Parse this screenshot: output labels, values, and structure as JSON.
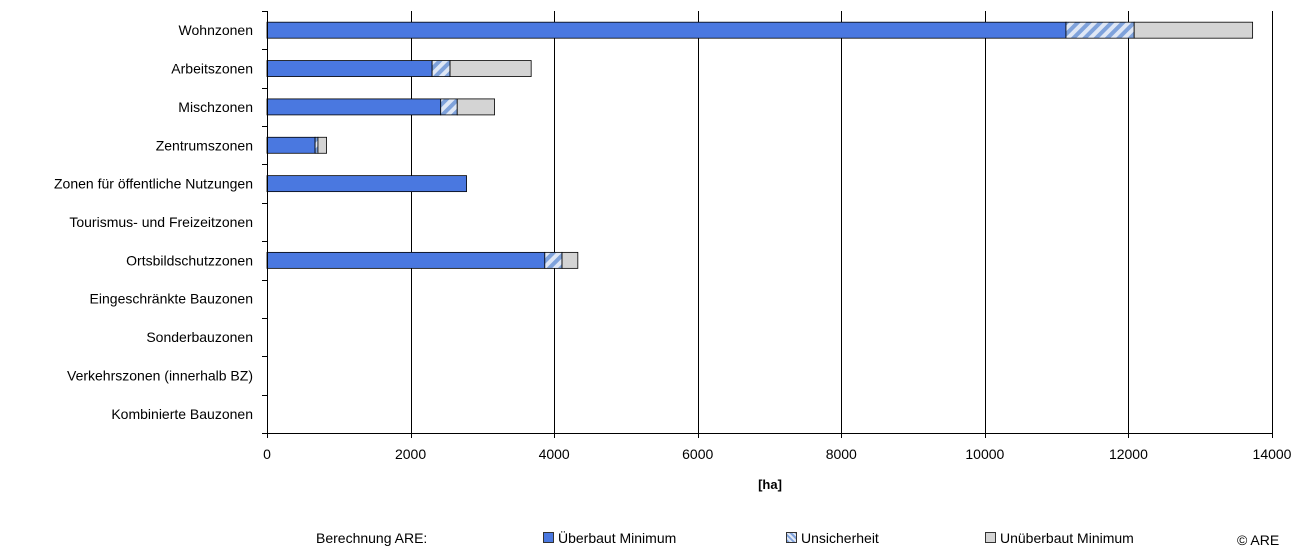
{
  "chart_data": {
    "type": "bar",
    "orientation": "horizontal",
    "stacked": true,
    "categories": [
      "Wohnzonen",
      "Arbeitszonen",
      "Mischzonen",
      "Zentrumszonen",
      "Zonen für öffentliche Nutzungen",
      "Tourismus- und Freizeitzonen",
      "Ortsbildschutzzonen",
      "Eingeschränkte Bauzonen",
      "Sonderbauzonen",
      "Verkehrszonen (innerhalb BZ)",
      "Kombinierte Bauzonen"
    ],
    "series": [
      {
        "name": "Überbaut Minimum",
        "color": "#4a78e0",
        "values": [
          11130,
          2300,
          2420,
          670,
          2780,
          0,
          3870,
          0,
          0,
          0,
          0
        ]
      },
      {
        "name": "Unsicherheit",
        "color": "#b9c9e6",
        "pattern": "diagonal-hatch",
        "values": [
          950,
          250,
          230,
          40,
          0,
          0,
          240,
          0,
          0,
          0,
          0
        ]
      },
      {
        "name": "Unüberbaut Minimum",
        "color": "#d4d4d4",
        "values": [
          1650,
          1130,
          520,
          120,
          0,
          0,
          220,
          0,
          0,
          0,
          0
        ]
      }
    ],
    "xlabel": "[ha]",
    "xlim": [
      0,
      14000
    ],
    "xticks": [
      0,
      2000,
      4000,
      6000,
      8000,
      10000,
      12000,
      14000
    ],
    "grid": "vertical",
    "legend": {
      "position": "bottom",
      "prefix": "Berechnung ARE:",
      "items": [
        "Überbaut Minimum",
        "Unsicherheit",
        "Unüberbaut Minimum"
      ]
    },
    "credit": "© ARE"
  }
}
